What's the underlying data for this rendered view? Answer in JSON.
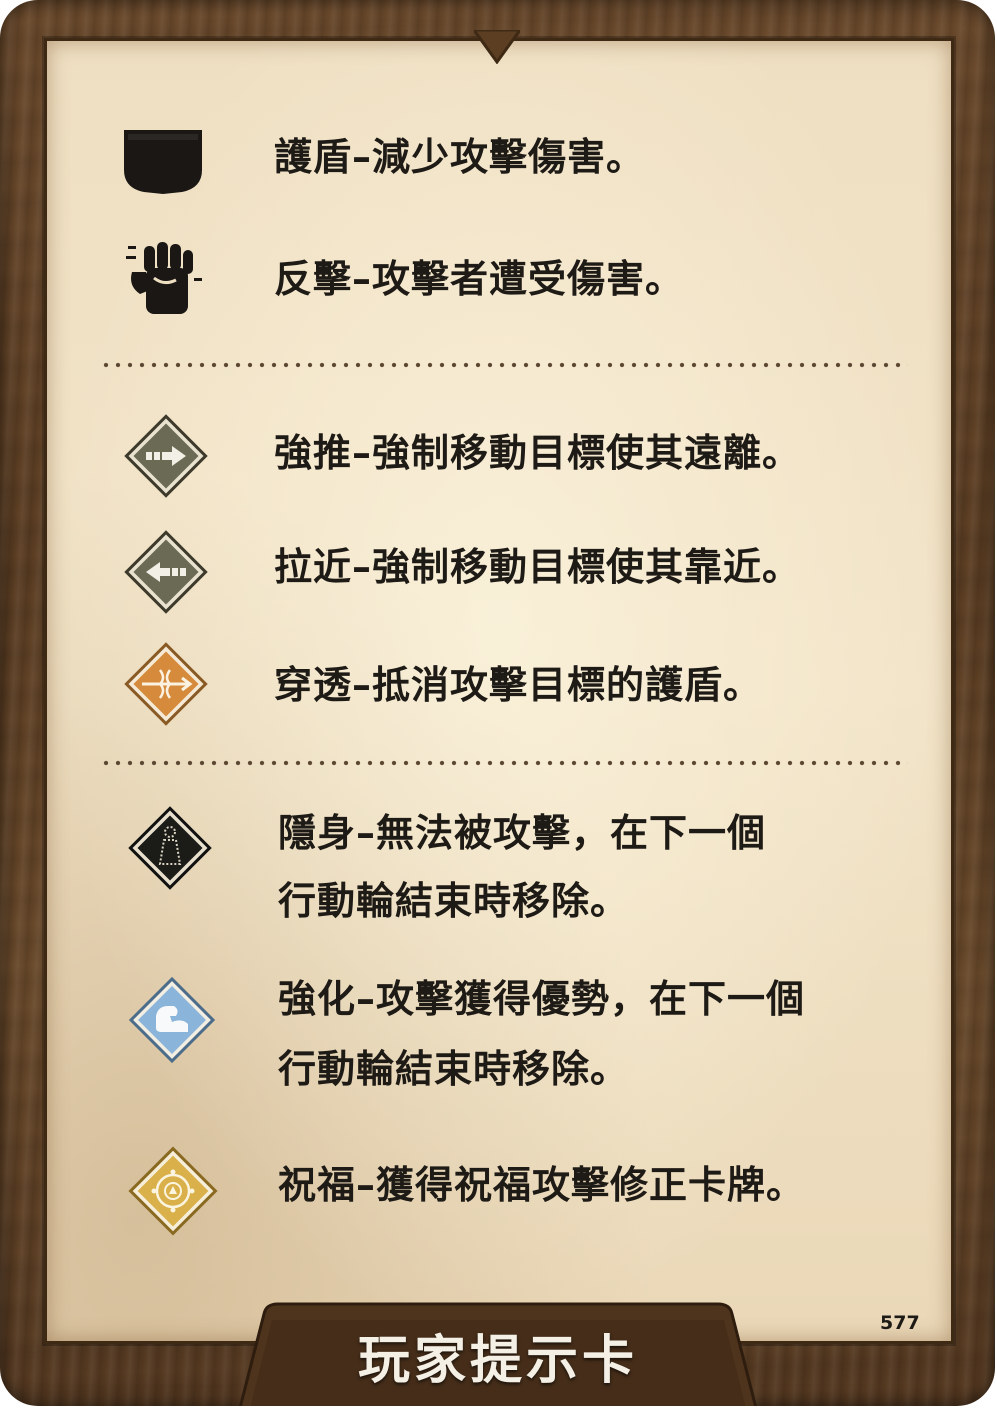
{
  "card": {
    "title": "玩家提示卡",
    "number": "577"
  },
  "entries": [
    {
      "icon": "shield-icon",
      "text": "護盾–減少攻擊傷害。"
    },
    {
      "icon": "retaliate-fist-icon",
      "text": "反擊–攻擊者遭受傷害。"
    },
    {
      "icon": "push-icon",
      "text": "強推–強制移動目標使其遠離。"
    },
    {
      "icon": "pull-icon",
      "text": "拉近–強制移動目標使其靠近。"
    },
    {
      "icon": "pierce-icon",
      "text": "穿透–抵消攻擊目標的護盾。"
    },
    {
      "icon": "invisible-icon",
      "line1": "隱身–無法被攻擊，在下一個",
      "line2": "行動輪結束時移除。"
    },
    {
      "icon": "strengthen-icon",
      "line1": "強化–攻擊獲得優勢，在下一個",
      "line2": "行動輪結束時移除。"
    },
    {
      "icon": "bless-icon",
      "text": "祝福–獲得祝福攻擊修正卡牌。"
    }
  ],
  "colors": {
    "push_pull_bg": "#6b6a55",
    "pierce_bg": "#d58a3c",
    "invisible_bg": "#1b1b18",
    "strengthen_bg": "#8ab4d9",
    "bless_bg": "#d9b04a",
    "text": "#1e1a16"
  }
}
